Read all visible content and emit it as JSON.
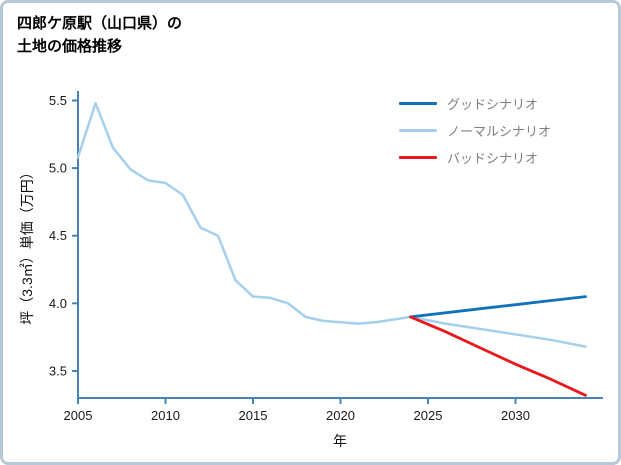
{
  "title": {
    "line1": "四郎ケ原駅（山口県）の",
    "line2": "土地の価格推移"
  },
  "axes": {
    "xlabel": "年",
    "ylabel": "坪（3.3㎡）単価（万円）",
    "x_ticks": [
      2005,
      2010,
      2015,
      2020,
      2025,
      2030
    ],
    "y_ticks": [
      "3.5",
      "4.0",
      "4.5",
      "5.0",
      "5.5"
    ],
    "axis_color": "#4682b4",
    "tick_label_color": "#1a1a1a"
  },
  "legend": [
    {
      "label": "グッドシナリオ",
      "color": "#1272b9"
    },
    {
      "label": "ノーマルシナリオ",
      "color": "#a6cfee"
    },
    {
      "label": "バッドシナリオ",
      "color": "#e8191d"
    }
  ],
  "chart_data": {
    "type": "line",
    "title": "四郎ケ原駅（山口県）の土地の価格推移",
    "xlabel": "年",
    "ylabel": "坪（3.3㎡）単価（万円）",
    "xlim": [
      2005,
      2035
    ],
    "ylim": [
      3.3,
      5.57
    ],
    "grid": false,
    "legend_position": "top-right",
    "series": [
      {
        "key": "history",
        "name": "実績（ノーマル）",
        "color": "#a6cfee",
        "width": 2.5,
        "x": [
          2005,
          2006,
          2007,
          2008,
          2009,
          2010,
          2011,
          2012,
          2013,
          2014,
          2015,
          2016,
          2017,
          2018,
          2019,
          2020,
          2021,
          2022,
          2023,
          2024
        ],
        "y": [
          5.08,
          5.48,
          5.15,
          4.99,
          4.91,
          4.89,
          4.8,
          4.56,
          4.5,
          4.17,
          4.05,
          4.04,
          4.0,
          3.9,
          3.87,
          3.86,
          3.85,
          3.86,
          3.88,
          3.9
        ]
      },
      {
        "key": "normal",
        "name": "ノーマルシナリオ",
        "color": "#a6cfee",
        "width": 2.5,
        "x": [
          2024,
          2026,
          2028,
          2030,
          2032,
          2034
        ],
        "y": [
          3.9,
          3.85,
          3.81,
          3.77,
          3.73,
          3.68
        ]
      },
      {
        "key": "good",
        "name": "グッドシナリオ",
        "color": "#1272b9",
        "width": 2.8,
        "x": [
          2024,
          2026,
          2028,
          2030,
          2032,
          2034
        ],
        "y": [
          3.9,
          3.93,
          3.96,
          3.99,
          4.02,
          4.05
        ]
      },
      {
        "key": "bad",
        "name": "バッドシナリオ",
        "color": "#e8191d",
        "width": 2.8,
        "x": [
          2024,
          2026,
          2028,
          2030,
          2032,
          2034
        ],
        "y": [
          3.9,
          3.79,
          3.67,
          3.55,
          3.44,
          3.32
        ]
      }
    ]
  }
}
